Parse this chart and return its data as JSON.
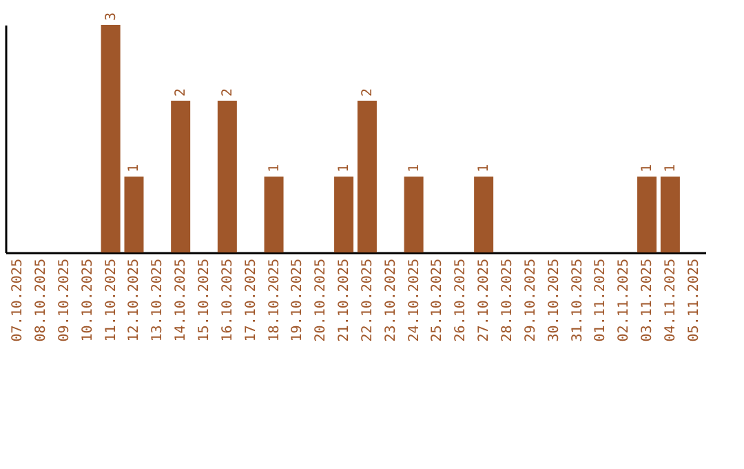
{
  "chart_data": {
    "type": "bar",
    "categories": [
      "07.10.2025",
      "08.10.2025",
      "09.10.2025",
      "10.10.2025",
      "11.10.2025",
      "12.10.2025",
      "13.10.2025",
      "14.10.2025",
      "15.10.2025",
      "16.10.2025",
      "17.10.2025",
      "18.10.2025",
      "19.10.2025",
      "20.10.2025",
      "21.10.2025",
      "22.10.2025",
      "23.10.2025",
      "24.10.2025",
      "25.10.2025",
      "26.10.2025",
      "27.10.2025",
      "28.10.2025",
      "29.10.2025",
      "30.10.2025",
      "31.10.2025",
      "01.11.2025",
      "02.11.2025",
      "03.11.2025",
      "04.11.2025",
      "05.11.2025"
    ],
    "values": [
      0,
      0,
      0,
      0,
      3,
      1,
      0,
      2,
      0,
      2,
      0,
      1,
      0,
      0,
      1,
      2,
      0,
      1,
      0,
      0,
      1,
      0,
      0,
      0,
      0,
      0,
      0,
      1,
      1,
      0
    ],
    "value_labels": [
      null,
      null,
      null,
      null,
      "3",
      "1",
      null,
      "2",
      null,
      "2",
      null,
      "1",
      null,
      null,
      "1",
      "2",
      null,
      "1",
      null,
      null,
      "1",
      null,
      null,
      null,
      null,
      null,
      null,
      "1",
      "1",
      null
    ],
    "color": "#a0572a",
    "ylim": [
      0,
      3
    ],
    "tick_labels": "x",
    "grid": false
  }
}
